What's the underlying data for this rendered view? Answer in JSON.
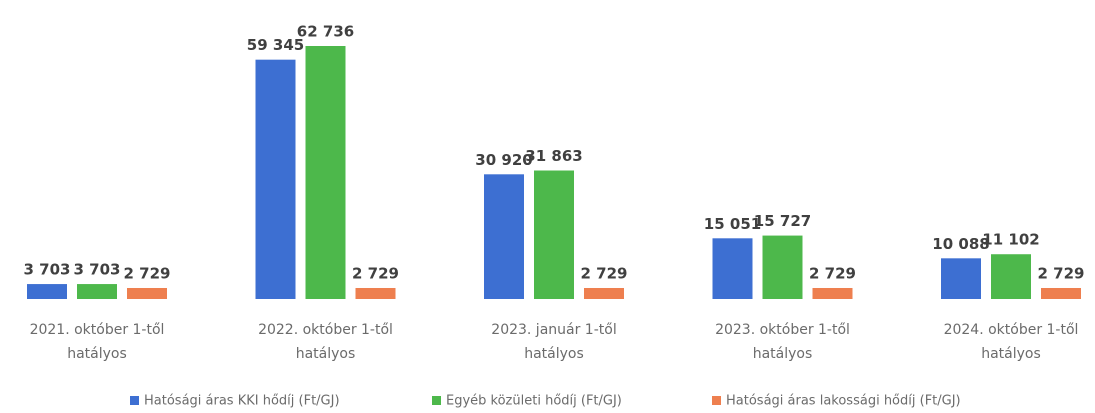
{
  "chart_data": {
    "type": "bar",
    "categories": [
      [
        "2021. október 1-től",
        "hatályos"
      ],
      [
        "2022. október 1-től",
        "hatályos"
      ],
      [
        "2023. január 1-től",
        "hatályos"
      ],
      [
        "2023. október 1-től",
        "hatályos"
      ],
      [
        "2024. október 1-től",
        "hatályos"
      ]
    ],
    "series": [
      {
        "name": "Hatósági áras KKI hődíj (Ft/GJ)",
        "color": "#3d6fd2",
        "values": [
          3703,
          59345,
          30920,
          15051,
          10088
        ],
        "value_labels": [
          "3 703",
          "59 345",
          "30 920",
          "15 051",
          "10 088"
        ]
      },
      {
        "name": "Egyéb közületi hődíj (Ft/GJ)",
        "color": "#4db84b",
        "values": [
          3703,
          62736,
          31863,
          15727,
          11102
        ],
        "value_labels": [
          "3 703",
          "62 736",
          "31 863",
          "15 727",
          "11 102"
        ]
      },
      {
        "name": "Hatósági áras lakossági hődíj (Ft/GJ)",
        "color": "#ee7f4f",
        "values": [
          2729,
          2729,
          2729,
          2729,
          2729
        ],
        "value_labels": [
          "2 729",
          "2 729",
          "2 729",
          "2 729",
          "2 729"
        ]
      }
    ],
    "legend": "bottom"
  }
}
